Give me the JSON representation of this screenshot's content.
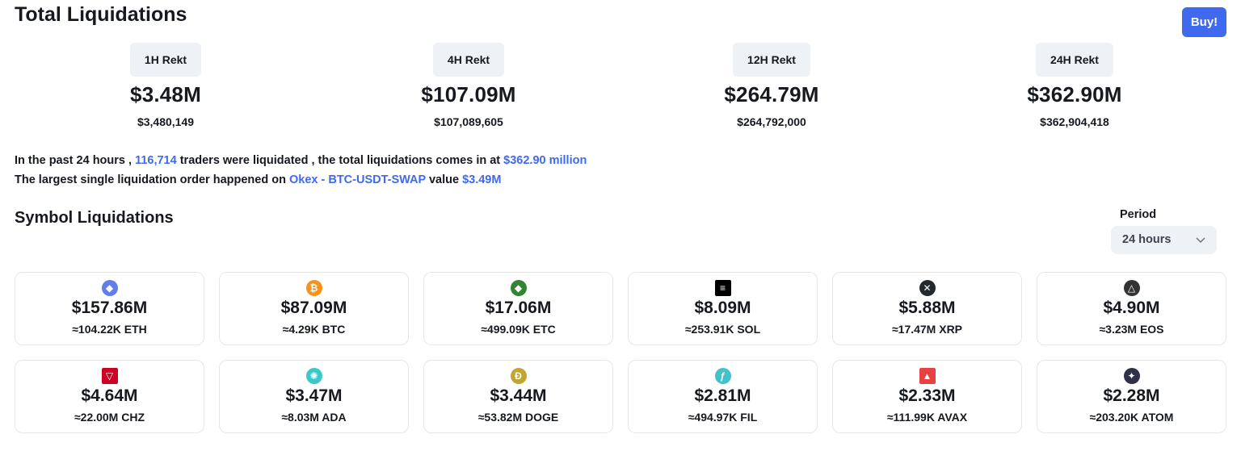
{
  "header": {
    "title": "Total Liquidations",
    "buy_label": "Buy!"
  },
  "stats": [
    {
      "label": "1H Rekt",
      "big": "$3.48M",
      "small": "$3,480,149"
    },
    {
      "label": "4H Rekt",
      "big": "$107.09M",
      "small": "$107,089,605"
    },
    {
      "label": "12H Rekt",
      "big": "$264.79M",
      "small": "$264,792,000"
    },
    {
      "label": "24H Rekt",
      "big": "$362.90M",
      "small": "$362,904,418"
    }
  ],
  "summary": {
    "line1_a": "In the past 24 hours , ",
    "line1_traders": "116,714",
    "line1_b": " traders were liquidated , the total liquidations comes in at ",
    "line1_total": "$362.90 million",
    "line2_a": "The largest single liquidation order happened on ",
    "line2_exchange": "Okex - BTC-USDT-SWAP",
    "line2_b": " value ",
    "line2_value": "$3.49M"
  },
  "symbols": {
    "title": "Symbol Liquidations",
    "period_label": "Period",
    "period_value": "24 hours",
    "cards": [
      {
        "usd": "$157.86M",
        "qty": "≈104.22K ETH",
        "icon": "ethereum-icon",
        "color": "#627eea",
        "glyph": "◆"
      },
      {
        "usd": "$87.09M",
        "qty": "≈4.29K BTC",
        "icon": "bitcoin-icon",
        "color": "#f7931a",
        "glyph": "₿"
      },
      {
        "usd": "$17.06M",
        "qty": "≈499.09K ETC",
        "icon": "ethereum-classic-icon",
        "color": "#328332",
        "glyph": "◆"
      },
      {
        "usd": "$8.09M",
        "qty": "≈253.91K SOL",
        "icon": "solana-icon",
        "color": "#000000",
        "glyph": "≡"
      },
      {
        "usd": "$5.88M",
        "qty": "≈17.47M XRP",
        "icon": "xrp-icon",
        "color": "#23292f",
        "glyph": "✕"
      },
      {
        "usd": "$4.90M",
        "qty": "≈3.23M EOS",
        "icon": "eos-icon",
        "color": "#333333",
        "glyph": "△"
      },
      {
        "usd": "$4.64M",
        "qty": "≈22.00M CHZ",
        "icon": "chiliz-icon",
        "color": "#cd0124",
        "glyph": "▽"
      },
      {
        "usd": "$3.47M",
        "qty": "≈8.03M ADA",
        "icon": "cardano-icon",
        "color": "#3cc8c8",
        "glyph": "✺"
      },
      {
        "usd": "$3.44M",
        "qty": "≈53.82M DOGE",
        "icon": "dogecoin-icon",
        "color": "#c2a633",
        "glyph": "Ð"
      },
      {
        "usd": "$2.81M",
        "qty": "≈494.97K FIL",
        "icon": "filecoin-icon",
        "color": "#42c1ca",
        "glyph": "ƒ"
      },
      {
        "usd": "$2.33M",
        "qty": "≈111.99K AVAX",
        "icon": "avalanche-icon",
        "color": "#e84142",
        "glyph": "▲"
      },
      {
        "usd": "$2.28M",
        "qty": "≈203.20K ATOM",
        "icon": "cosmos-icon",
        "color": "#2e3148",
        "glyph": "✦"
      }
    ]
  },
  "colors": {
    "accent": "#3f6af0",
    "pill_bg": "#eef1f5",
    "card_border": "#e4e7ec"
  }
}
